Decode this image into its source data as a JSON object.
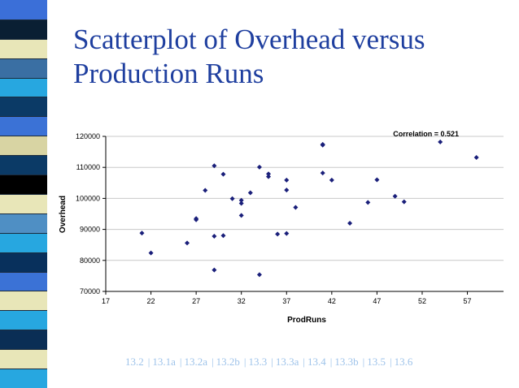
{
  "slide": {
    "title": "Scatterplot of Overhead versus Production Runs",
    "stripe_colors": [
      "#3b6fd8",
      "#0a1f33",
      "#e8e6b8",
      "#3a6fa3",
      "#27a7e0",
      "#0b3a66",
      "#3b72d6",
      "#d8d4a3",
      "#0b3a66",
      "#000000",
      "#e8e6b8",
      "#4f8fc4",
      "#27a7e0",
      "#08305c",
      "#3b72d6",
      "#e8e6b8",
      "#27a7e0",
      "#0a2e55",
      "#e8e6b8",
      "#27a7e0"
    ]
  },
  "chart_data": {
    "type": "scatter",
    "xlabel": "ProdRuns",
    "ylabel": "Overhead",
    "xlim": [
      17,
      61
    ],
    "ylim": [
      70000,
      120000
    ],
    "xticks": [
      17,
      22,
      27,
      32,
      37,
      42,
      47,
      52,
      57
    ],
    "yticks": [
      70000,
      80000,
      90000,
      100000,
      110000,
      120000
    ],
    "annotation": "Correlation = 0.521",
    "marker_color": "#1a1f7a",
    "grid": "horizontal",
    "points": [
      [
        21,
        88800
      ],
      [
        22,
        82400
      ],
      [
        26,
        85600
      ],
      [
        27,
        93500
      ],
      [
        27,
        93100
      ],
      [
        28,
        102600
      ],
      [
        29,
        110500
      ],
      [
        29,
        87800
      ],
      [
        29,
        76900
      ],
      [
        30,
        107800
      ],
      [
        30,
        88000
      ],
      [
        31,
        99900
      ],
      [
        32,
        99400
      ],
      [
        32,
        98400
      ],
      [
        32,
        94500
      ],
      [
        33,
        101800
      ],
      [
        34,
        110100
      ],
      [
        34,
        75400
      ],
      [
        35,
        107900
      ],
      [
        35,
        107000
      ],
      [
        36,
        88500
      ],
      [
        37,
        105900
      ],
      [
        37,
        102700
      ],
      [
        37,
        88700
      ],
      [
        38,
        97100
      ],
      [
        41,
        117200
      ],
      [
        41,
        117400
      ],
      [
        41,
        108200
      ],
      [
        42,
        105900
      ],
      [
        44,
        92000
      ],
      [
        46,
        98700
      ],
      [
        47,
        106000
      ],
      [
        49,
        100700
      ],
      [
        50,
        98900
      ],
      [
        54,
        118200
      ],
      [
        58,
        113200
      ]
    ]
  },
  "nav": {
    "links": [
      "13.2",
      "13.1a",
      "13.2a",
      "13.2b",
      "13.3",
      "13.3a",
      "13.4",
      "13.3b",
      "13.5",
      "13.6"
    ],
    "separator": "|"
  }
}
